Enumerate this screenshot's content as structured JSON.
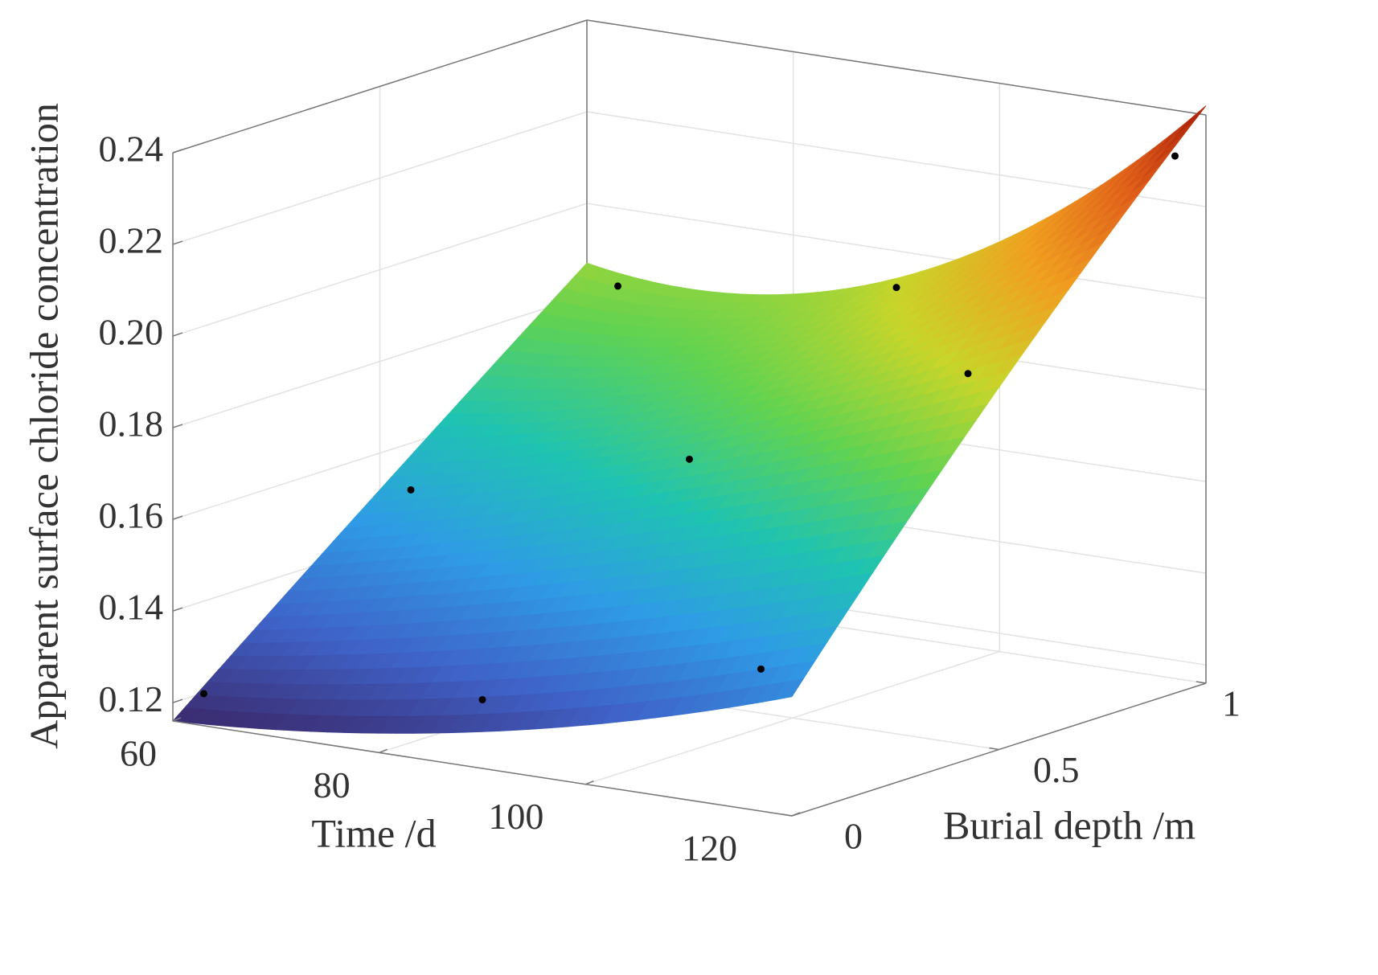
{
  "chart_data": {
    "type": "surface",
    "xlabel": "Time /d",
    "ylabel": "Burial depth /m",
    "zlabel": "Apparent surface chloride concentration",
    "x": [
      60,
      90,
      120
    ],
    "y": [
      0,
      0.5,
      1
    ],
    "z": [
      [
        0.116,
        0.124,
        0.142
      ],
      [
        0.152,
        0.17,
        0.195
      ],
      [
        0.187,
        0.194,
        0.242
      ]
    ],
    "points": {
      "x": [
        63,
        90,
        117,
        63,
        90,
        117,
        63,
        90,
        117
      ],
      "y": [
        0,
        0,
        0,
        0.5,
        0.5,
        0.5,
        1,
        1,
        1
      ],
      "z": [
        0.123,
        0.131,
        0.147,
        0.153,
        0.169,
        0.197,
        0.183,
        0.192,
        0.23
      ]
    },
    "point_color": "#000000",
    "colormap": [
      "#3b2a6e",
      "#3f62c8",
      "#2f9be6",
      "#1fc3b2",
      "#62d350",
      "#c8d52a",
      "#f0a020",
      "#e0601a",
      "#a81a08"
    ],
    "xlim": [
      60,
      120
    ],
    "ylim": [
      0,
      1
    ],
    "zlim": [
      0.116,
      0.24
    ],
    "xticks": [
      60,
      80,
      100,
      120
    ],
    "yticks": [
      0,
      0.5,
      1
    ],
    "zticks": [
      0.12,
      0.14,
      0.16,
      0.18,
      {
        "value": 0.2,
        "label": "0.20"
      },
      0.22,
      0.24
    ],
    "grid": true
  }
}
